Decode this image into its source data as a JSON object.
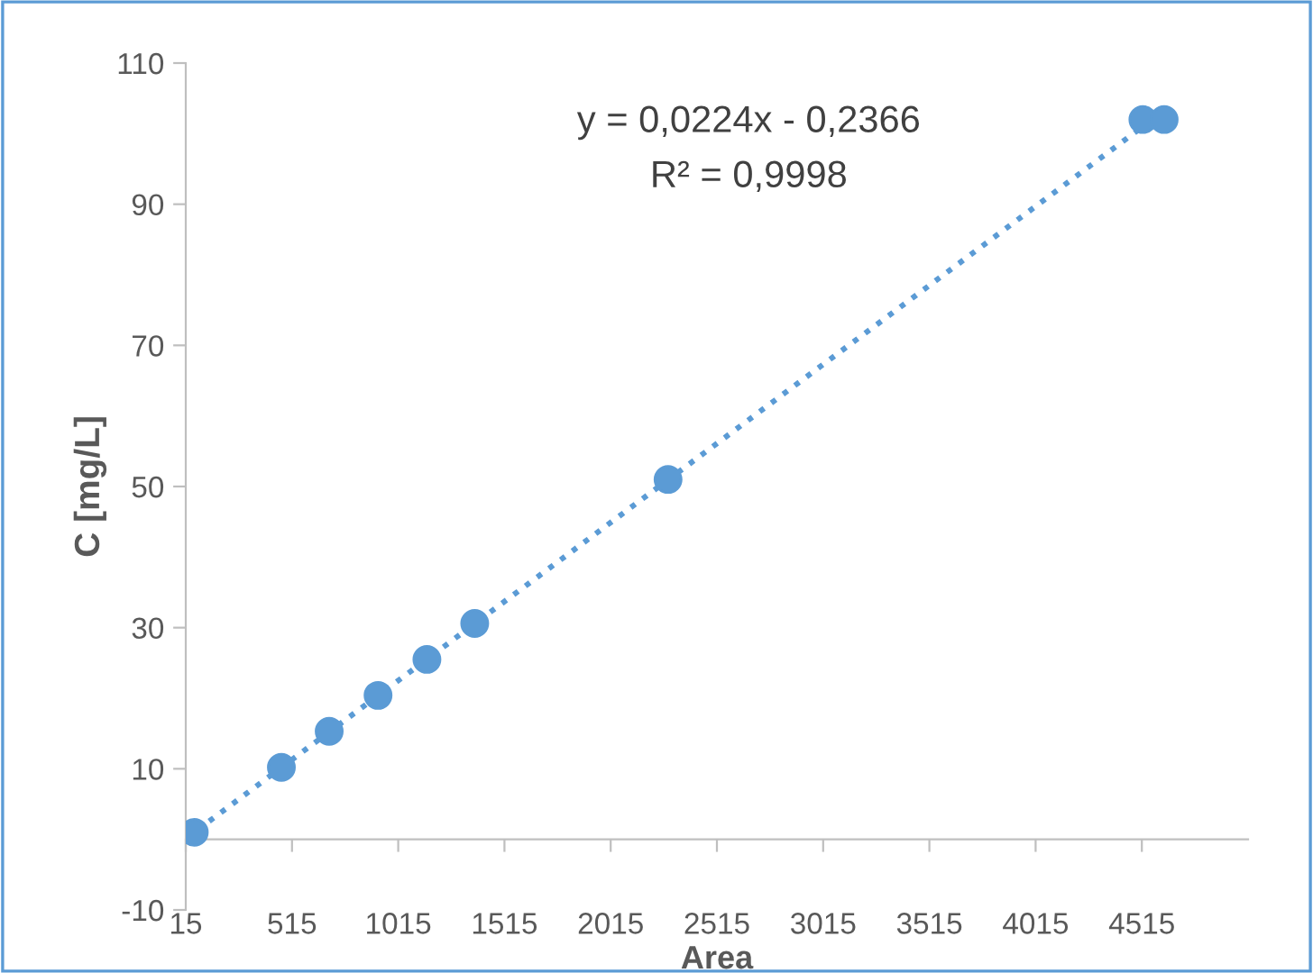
{
  "chart_data": {
    "type": "scatter",
    "xlabel": "Area",
    "ylabel": "C [mg/L]",
    "annotations": [
      "y = 0,0224x - 0,2366",
      "R² = 0,9998"
    ],
    "xlim": [
      15,
      5015
    ],
    "xticks": [
      15,
      515,
      1015,
      1515,
      2015,
      2515,
      3015,
      3515,
      4015,
      4515
    ],
    "ylim": [
      -10,
      110
    ],
    "yticks": [
      -10,
      10,
      30,
      50,
      70,
      90,
      110
    ],
    "grid": false,
    "marker": "circle",
    "series": [
      {
        "color": "#5b9bd5",
        "x": [
          55,
          465,
          690,
          920,
          1150,
          1375,
          2285,
          4520,
          4620
        ],
        "values": [
          1,
          10.2,
          15.3,
          20.4,
          25.5,
          30.6,
          51,
          102,
          102
        ]
      },
      {
        "type": "line",
        "color": "#5b9bd5",
        "line_style": "dotted",
        "marker": "none",
        "x": [
          15,
          4600
        ],
        "values": [
          0.1,
          102.8
        ]
      }
    ]
  }
}
